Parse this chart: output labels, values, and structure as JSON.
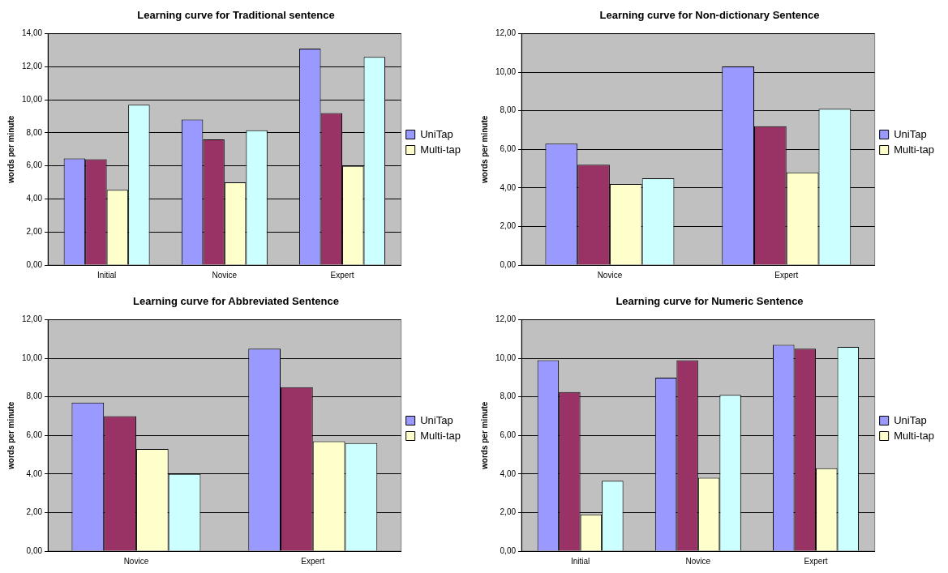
{
  "chart_data": [
    {
      "type": "bar",
      "title": "Learning curve for Traditional sentence",
      "ylabel": "words per minute",
      "categories": [
        "Initial",
        "Novice",
        "Expert"
      ],
      "series": [
        {
          "name": "UniTap",
          "color": "#9999ff",
          "values": [
            6.45,
            8.8,
            13.1
          ]
        },
        {
          "color": "#993366",
          "values": [
            6.4,
            7.6,
            9.2
          ]
        },
        {
          "name": "Multi-tap",
          "color": "#ffffcc",
          "values": [
            4.55,
            5.0,
            6.0
          ]
        },
        {
          "color": "#ccffff",
          "values": [
            9.7,
            8.15,
            12.6
          ]
        }
      ],
      "ylim": [
        0,
        14
      ],
      "yticks": [
        {
          "value": 0,
          "label": "0,00"
        },
        {
          "value": 2,
          "label": "2,00"
        },
        {
          "value": 4,
          "label": "4,00"
        },
        {
          "value": 6,
          "label": "6,00"
        },
        {
          "value": 8,
          "label": "8,00"
        },
        {
          "value": 10,
          "label": "10,00"
        },
        {
          "value": 12,
          "label": "12,00"
        },
        {
          "value": 14,
          "label": "14,00"
        }
      ],
      "grid": "y",
      "legend": "right"
    },
    {
      "type": "bar",
      "title": "Learning curve for Non-dictionary Sentence",
      "ylabel": "words per minute",
      "categories": [
        "Novice",
        "Expert"
      ],
      "series": [
        {
          "name": "UniTap",
          "color": "#9999ff",
          "values": [
            6.3,
            10.3
          ]
        },
        {
          "color": "#993366",
          "values": [
            5.2,
            7.2
          ]
        },
        {
          "name": "Multi-tap",
          "color": "#ffffcc",
          "values": [
            4.2,
            4.8
          ]
        },
        {
          "color": "#ccffff",
          "values": [
            4.5,
            8.1
          ]
        }
      ],
      "ylim": [
        0,
        12
      ],
      "yticks": [
        {
          "value": 0,
          "label": "0,00"
        },
        {
          "value": 2,
          "label": "2,00"
        },
        {
          "value": 4,
          "label": "4,00"
        },
        {
          "value": 6,
          "label": "6,00"
        },
        {
          "value": 8,
          "label": "8,00"
        },
        {
          "value": 10,
          "label": "10,00"
        },
        {
          "value": 12,
          "label": "12,00"
        }
      ],
      "grid": "y",
      "legend": "right"
    },
    {
      "type": "bar",
      "title": "Learning curve for Abbreviated Sentence",
      "ylabel": "words per minute",
      "categories": [
        "Novice",
        "Expert"
      ],
      "series": [
        {
          "name": "UniTap",
          "color": "#9999ff",
          "values": [
            7.7,
            10.5
          ]
        },
        {
          "color": "#993366",
          "values": [
            7.0,
            8.5
          ]
        },
        {
          "name": "Multi-tap",
          "color": "#ffffcc",
          "values": [
            5.3,
            5.7
          ]
        },
        {
          "color": "#ccffff",
          "values": [
            4.0,
            5.6
          ]
        }
      ],
      "ylim": [
        0,
        12
      ],
      "yticks": [
        {
          "value": 0,
          "label": "0,00"
        },
        {
          "value": 2,
          "label": "2,00"
        },
        {
          "value": 4,
          "label": "4,00"
        },
        {
          "value": 6,
          "label": "6,00"
        },
        {
          "value": 8,
          "label": "8,00"
        },
        {
          "value": 10,
          "label": "10,00"
        },
        {
          "value": 12,
          "label": "12,00"
        }
      ],
      "grid": "y",
      "legend": "right"
    },
    {
      "type": "bar",
      "title": "Learning curve for Numeric Sentence",
      "ylabel": "words per minute",
      "categories": [
        "Initial",
        "Novice",
        "Expert"
      ],
      "series": [
        {
          "name": "UniTap",
          "color": "#9999ff",
          "values": [
            9.9,
            9.0,
            10.7
          ]
        },
        {
          "color": "#993366",
          "values": [
            8.25,
            9.9,
            10.5
          ]
        },
        {
          "name": "Multi-tap",
          "color": "#ffffcc",
          "values": [
            1.9,
            3.8,
            4.3
          ]
        },
        {
          "color": "#ccffff",
          "values": [
            3.65,
            8.1,
            10.6
          ]
        }
      ],
      "ylim": [
        0,
        12
      ],
      "yticks": [
        {
          "value": 0,
          "label": "0,00"
        },
        {
          "value": 2,
          "label": "2,00"
        },
        {
          "value": 4,
          "label": "4,00"
        },
        {
          "value": 6,
          "label": "6,00"
        },
        {
          "value": 8,
          "label": "8,00"
        },
        {
          "value": 10,
          "label": "10,00"
        },
        {
          "value": 12,
          "label": "12,00"
        }
      ],
      "grid": "y",
      "legend": "right"
    }
  ]
}
